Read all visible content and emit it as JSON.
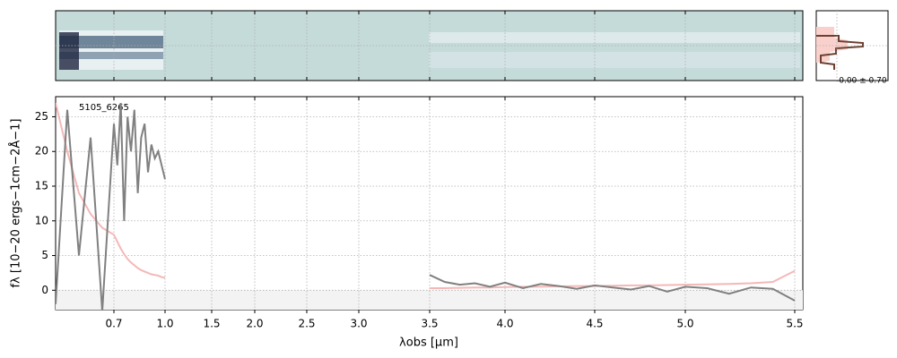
{
  "chart_data": {
    "type": "line",
    "annotation": "5105_6265",
    "inset_label": "-0.00 ± 0.70",
    "xlabel": "λobs [μm]",
    "ylabel": "fλ [10−20 ergs−1cm−2Å−1]",
    "x": [
      0.6,
      0.62,
      0.64,
      0.66,
      0.68,
      0.7,
      0.72,
      0.74,
      0.76,
      0.78,
      0.8,
      0.82,
      0.84,
      0.86,
      0.88,
      0.9,
      0.92,
      0.94,
      0.96,
      0.98,
      1.0,
      null,
      3.5,
      3.6,
      3.7,
      3.8,
      3.9,
      4.0,
      4.1,
      4.2,
      4.3,
      4.4,
      4.5,
      4.6,
      4.7,
      4.8,
      4.9,
      5.0,
      5.1,
      5.2,
      5.3,
      5.4,
      5.5
    ],
    "series": [
      {
        "color": "#f4b8b8",
        "values": [
          27,
          20,
          14,
          11,
          9,
          8,
          7,
          6,
          5.2,
          4.5,
          4,
          3.6,
          3.2,
          2.9,
          2.7,
          2.5,
          2.3,
          2.2,
          2.1,
          1.9,
          1.8,
          null,
          0.3,
          0.3,
          0.35,
          0.4,
          0.4,
          0.45,
          0.5,
          0.5,
          0.55,
          0.6,
          0.6,
          0.65,
          0.7,
          0.7,
          0.75,
          0.8,
          0.85,
          0.9,
          1,
          1.2,
          2.8
        ]
      },
      {
        "color": "#808080",
        "values": [
          -2,
          26,
          5,
          22,
          -3,
          24,
          18,
          27,
          10,
          25,
          20,
          26,
          14,
          22,
          24,
          17,
          21,
          19,
          20,
          18,
          16,
          null,
          2.2,
          1.2,
          0.8,
          1,
          0.5,
          1.1,
          0.3,
          0.9,
          0.6,
          0.2,
          0.7,
          0.4,
          0.1,
          0.6,
          -0.2,
          0.5,
          0.3,
          -0.5,
          0.4,
          0.2,
          -1.5
        ]
      }
    ],
    "xlim": [
      0.6,
      5.53
    ],
    "xticks": [
      0.7,
      {
        "value": 1,
        "label": "1.0"
      },
      1.5,
      {
        "value": 2,
        "label": "2.0"
      },
      2.5,
      {
        "value": 3,
        "label": "3.0"
      },
      3.5,
      {
        "value": 4,
        "label": "4.0"
      },
      4.5,
      {
        "value": 5,
        "label": "5.0"
      },
      5.5
    ],
    "ylim": [
      -2.8,
      27.9
    ],
    "yticks": [
      0,
      5,
      10,
      15,
      20,
      25
    ],
    "grid": true
  }
}
